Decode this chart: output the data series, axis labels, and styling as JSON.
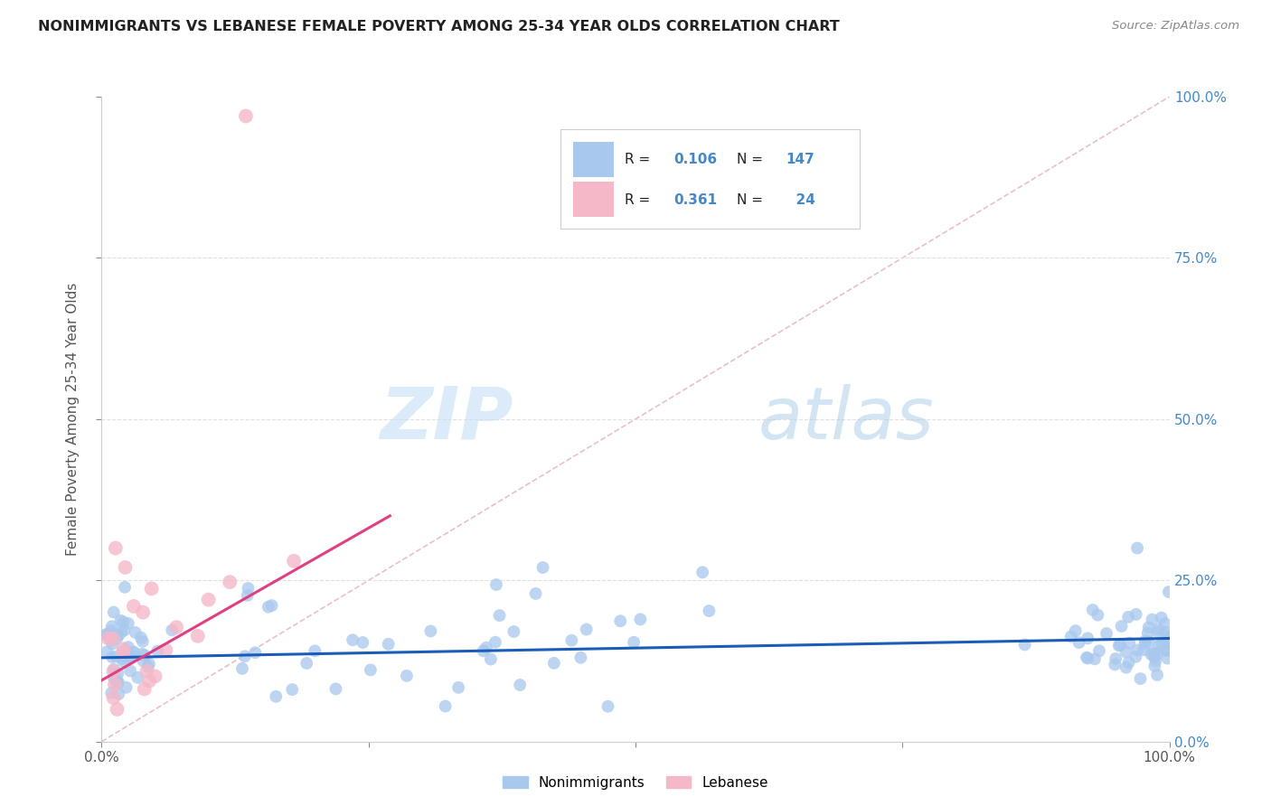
{
  "title": "NONIMMIGRANTS VS LEBANESE FEMALE POVERTY AMONG 25-34 YEAR OLDS CORRELATION CHART",
  "source": "Source: ZipAtlas.com",
  "ylabel": "Female Poverty Among 25-34 Year Olds",
  "watermark_zip": "ZIP",
  "watermark_atlas": "atlas",
  "xlim": [
    0,
    1
  ],
  "ylim": [
    0,
    1
  ],
  "xticklabels": [
    "0.0%",
    "",
    "",
    "",
    "100.0%"
  ],
  "yticklabels_right": [
    "0.0%",
    "25.0%",
    "50.0%",
    "75.0%",
    "100.0%"
  ],
  "nonimmigrant_R": 0.106,
  "nonimmigrant_N": 147,
  "lebanese_R": 0.361,
  "lebanese_N": 24,
  "nonimmigrant_color": "#a8c8ee",
  "lebanese_color": "#f5b8c8",
  "trend_nonimmigrant_color": "#1a5cb8",
  "trend_lebanese_color": "#e04080",
  "diag_color": "#e8c0c8",
  "grid_color": "#e0e0e0",
  "right_axis_color": "#4488cc",
  "title_color": "#222222",
  "source_color": "#888888",
  "ylabel_color": "#555555",
  "xtick_color": "#555555",
  "watermark_color": "#d0e8f5"
}
